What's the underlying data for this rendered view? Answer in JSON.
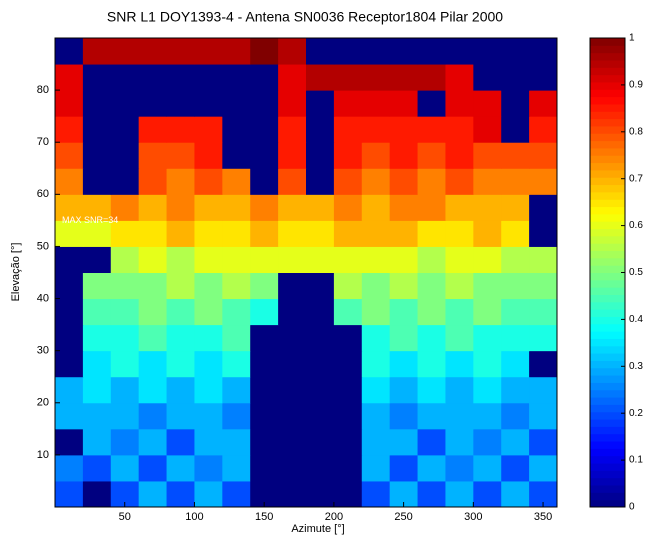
{
  "chart_data": {
    "type": "heatmap",
    "title": "SNR L1 DOY1393-4 - Antena SN0036 Receptor1804 Pilar 2000",
    "xlabel": "Azimute [°]",
    "ylabel": "Elevação [°]",
    "annotation": {
      "text": "MAX SNR=34",
      "x": 5,
      "y": 55
    },
    "colormap": "jet",
    "x": [
      10,
      30,
      50,
      70,
      90,
      110,
      130,
      150,
      170,
      190,
      210,
      230,
      250,
      270,
      290,
      310,
      330,
      350
    ],
    "y": [
      2.5,
      7.5,
      12.5,
      17.5,
      22.5,
      27.5,
      32.5,
      37.5,
      42.5,
      47.5,
      52.5,
      57.5,
      62.5,
      67.5,
      72.5,
      77.5,
      82.5,
      87.5
    ],
    "z": [
      [
        0.2,
        0,
        0.2,
        0.3,
        0.2,
        0.3,
        0.2,
        0,
        0,
        0,
        0,
        0.2,
        0.3,
        0.2,
        0.3,
        0.2,
        0.3,
        0.2
      ],
      [
        0.25,
        0.2,
        0.3,
        0.2,
        0.3,
        0.25,
        0.3,
        0,
        0,
        0,
        0,
        0.3,
        0.2,
        0.3,
        0.25,
        0.3,
        0.2,
        0.3
      ],
      [
        0,
        0.3,
        0.25,
        0.3,
        0.2,
        0.3,
        0.3,
        0,
        0,
        0,
        0,
        0.3,
        0.3,
        0.2,
        0.3,
        0.25,
        0.3,
        0.2
      ],
      [
        0.3,
        0.3,
        0.3,
        0.25,
        0.3,
        0.3,
        0.25,
        0,
        0,
        0,
        0,
        0.3,
        0.25,
        0.3,
        0.3,
        0.3,
        0.25,
        0.3
      ],
      [
        0.3,
        0.35,
        0.3,
        0.35,
        0.3,
        0.35,
        0.3,
        0,
        0,
        0,
        0,
        0.35,
        0.3,
        0.35,
        0.3,
        0.35,
        0.3,
        0.3
      ],
      [
        0,
        0.35,
        0.4,
        0.35,
        0.4,
        0.35,
        0.4,
        0,
        0,
        0,
        0,
        0.4,
        0.35,
        0.4,
        0.35,
        0.4,
        0.35,
        0
      ],
      [
        0,
        0.4,
        0.4,
        0.45,
        0.4,
        0.4,
        0.45,
        0,
        0,
        0,
        0,
        0.4,
        0.45,
        0.4,
        0.45,
        0.4,
        0.4,
        0.4
      ],
      [
        0,
        0.45,
        0.45,
        0.5,
        0.45,
        0.5,
        0.45,
        0.4,
        0,
        0,
        0.45,
        0.5,
        0.45,
        0.5,
        0.45,
        0.5,
        0.45,
        0.45
      ],
      [
        0,
        0.5,
        0.5,
        0.5,
        0.55,
        0.5,
        0.55,
        0.5,
        0,
        0,
        0.55,
        0.5,
        0.55,
        0.5,
        0.55,
        0.5,
        0.5,
        0.5
      ],
      [
        0,
        0,
        0.55,
        0.6,
        0.55,
        0.6,
        0.6,
        0.6,
        0.6,
        0.6,
        0.6,
        0.6,
        0.6,
        0.55,
        0.6,
        0.6,
        0.55,
        0.55
      ],
      [
        0.6,
        0.6,
        0.65,
        0.65,
        0.7,
        0.65,
        0.65,
        0.7,
        0.65,
        0.65,
        0.7,
        0.7,
        0.7,
        0.65,
        0.65,
        0.7,
        0.65,
        0
      ],
      [
        0.7,
        0.7,
        0.75,
        0.7,
        0.75,
        0.7,
        0.7,
        0.75,
        0.7,
        0.7,
        0.75,
        0.7,
        0.75,
        0.75,
        0.7,
        0.7,
        0.7,
        0
      ],
      [
        0.75,
        0,
        0,
        0.8,
        0.75,
        0.8,
        0.75,
        0,
        0.8,
        0,
        0.8,
        0.75,
        0.8,
        0.75,
        0.8,
        0.75,
        0.75,
        0.75
      ],
      [
        0.8,
        0,
        0,
        0.8,
        0.8,
        0.85,
        0,
        0,
        0.85,
        0,
        0.85,
        0.8,
        0.85,
        0.8,
        0.85,
        0.8,
        0.8,
        0.8
      ],
      [
        0.85,
        0,
        0,
        0.85,
        0.85,
        0.85,
        0,
        0,
        0.85,
        0,
        0.85,
        0.85,
        0.85,
        0.85,
        0.85,
        0.9,
        0,
        0.85
      ],
      [
        0.9,
        0,
        0,
        0,
        0,
        0,
        0,
        0,
        0.9,
        0,
        0.9,
        0.9,
        0.9,
        0,
        0.9,
        0.9,
        0,
        0.9
      ],
      [
        0.9,
        0,
        0,
        0,
        0,
        0,
        0,
        0,
        0.9,
        0.95,
        0.95,
        0.95,
        0.95,
        0.95,
        0.9,
        0,
        0,
        0
      ],
      [
        0,
        0.95,
        0.95,
        0.95,
        0.95,
        0.95,
        0.95,
        1,
        0.95,
        0,
        0,
        0,
        0,
        0,
        0,
        0,
        0,
        0
      ]
    ],
    "xlim": [
      0,
      360
    ],
    "ylim": [
      0,
      90
    ],
    "xticks": [
      50,
      100,
      150,
      200,
      250,
      300,
      350
    ],
    "yticks": [
      10,
      20,
      30,
      40,
      50,
      60,
      70,
      80
    ],
    "clim": [
      0,
      1
    ],
    "cticks": [
      0,
      0.1,
      0.2,
      0.3,
      0.4,
      0.5,
      0.6,
      0.7,
      0.8,
      0.9,
      1
    ]
  }
}
